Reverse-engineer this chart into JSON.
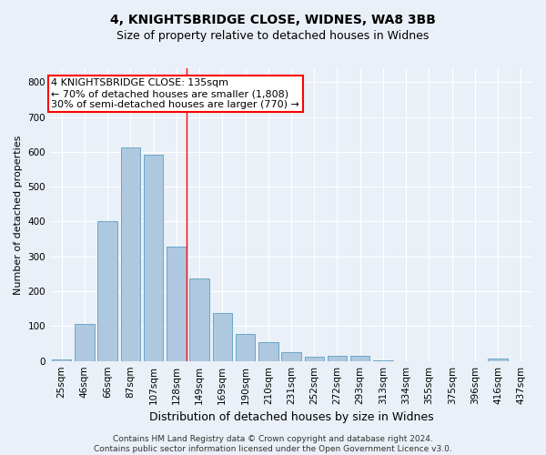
{
  "title_line1": "4, KNIGHTSBRIDGE CLOSE, WIDNES, WA8 3BB",
  "title_line2": "Size of property relative to detached houses in Widnes",
  "xlabel": "Distribution of detached houses by size in Widnes",
  "ylabel": "Number of detached properties",
  "categories": [
    "25sqm",
    "46sqm",
    "66sqm",
    "87sqm",
    "107sqm",
    "128sqm",
    "149sqm",
    "169sqm",
    "190sqm",
    "210sqm",
    "231sqm",
    "252sqm",
    "272sqm",
    "293sqm",
    "313sqm",
    "334sqm",
    "355sqm",
    "375sqm",
    "396sqm",
    "416sqm",
    "437sqm"
  ],
  "values": [
    5,
    105,
    402,
    614,
    592,
    328,
    237,
    137,
    77,
    53,
    25,
    12,
    15,
    15,
    2,
    0,
    0,
    0,
    0,
    7,
    0
  ],
  "bar_color": "#aec8e0",
  "bar_edge_color": "#5a9fc0",
  "annotation_text": "4 KNIGHTSBRIDGE CLOSE: 135sqm\n← 70% of detached houses are smaller (1,808)\n30% of semi-detached houses are larger (770) →",
  "annotation_box_color": "white",
  "annotation_box_edge_color": "red",
  "vline_x_index": 5.45,
  "vline_color": "red",
  "ylim": [
    0,
    840
  ],
  "yticks": [
    0,
    100,
    200,
    300,
    400,
    500,
    600,
    700,
    800
  ],
  "bg_color": "#eaf0f7",
  "plot_bg_color": "#eaf0f7",
  "footnote": "Contains HM Land Registry data © Crown copyright and database right 2024.\nContains public sector information licensed under the Open Government Licence v3.0.",
  "title_fontsize": 10,
  "subtitle_fontsize": 9,
  "ylabel_fontsize": 8,
  "xlabel_fontsize": 9,
  "tick_fontsize": 7.5,
  "annotation_fontsize": 8,
  "footnote_fontsize": 6.5
}
